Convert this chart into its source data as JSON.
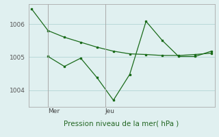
{
  "background_color": "#e0f0f0",
  "grid_color": "#b8d8d8",
  "line_color": "#1a6b1a",
  "title": "Pression niveau de la mer( hPa )",
  "xlabel_mer": "Mer",
  "xlabel_jeu": "Jeu",
  "ylim": [
    1003.5,
    1006.6
  ],
  "yticks": [
    1004,
    1005,
    1006
  ],
  "line1_x": [
    0,
    1,
    2,
    3,
    4,
    5,
    6,
    7,
    8,
    9,
    10,
    11
  ],
  "line1_y": [
    1006.45,
    1005.8,
    1005.6,
    1005.45,
    1005.3,
    1005.18,
    1005.1,
    1005.08,
    1005.05,
    1005.05,
    1005.08,
    1005.12
  ],
  "line2_x": [
    1,
    2,
    3,
    4,
    5,
    6,
    7,
    8,
    9,
    10,
    11
  ],
  "line2_y": [
    1005.02,
    1004.72,
    1004.97,
    1004.38,
    1003.7,
    1004.48,
    1006.08,
    1005.5,
    1005.02,
    1005.02,
    1005.18
  ],
  "mer_x": 1,
  "jeu_x": 4.5,
  "xlim": [
    -0.2,
    11.2
  ],
  "n_points": 12
}
